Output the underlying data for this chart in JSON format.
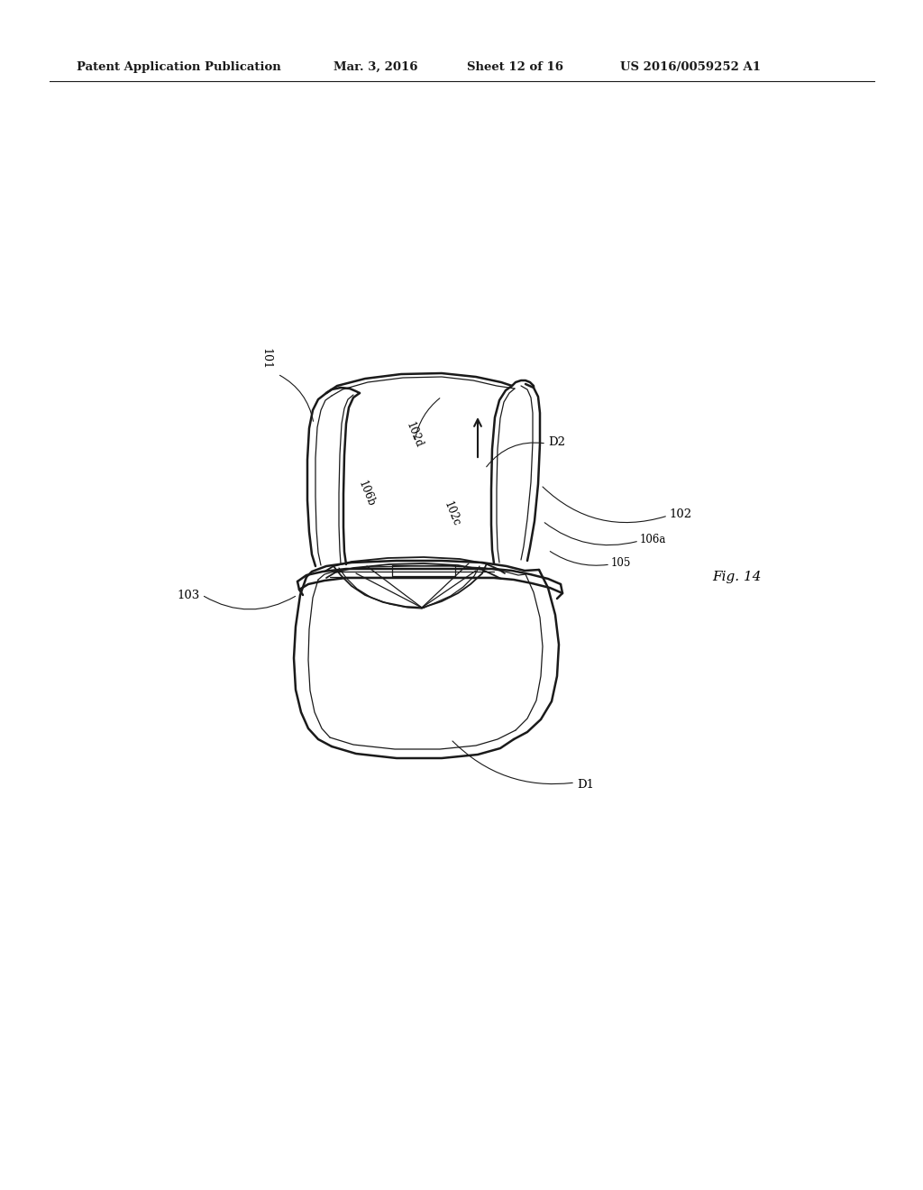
{
  "bg_color": "#ffffff",
  "line_color": "#1a1a1a",
  "header_text": "Patent Application Publication",
  "header_date": "Mar. 3, 2016",
  "header_sheet": "Sheet 12 of 16",
  "header_patent": "US 2016/0059252 A1",
  "fig_label": "Fig. 14",
  "lw_main": 1.8,
  "lw_medium": 1.3,
  "lw_thin": 0.9,
  "lw_leader": 0.8
}
